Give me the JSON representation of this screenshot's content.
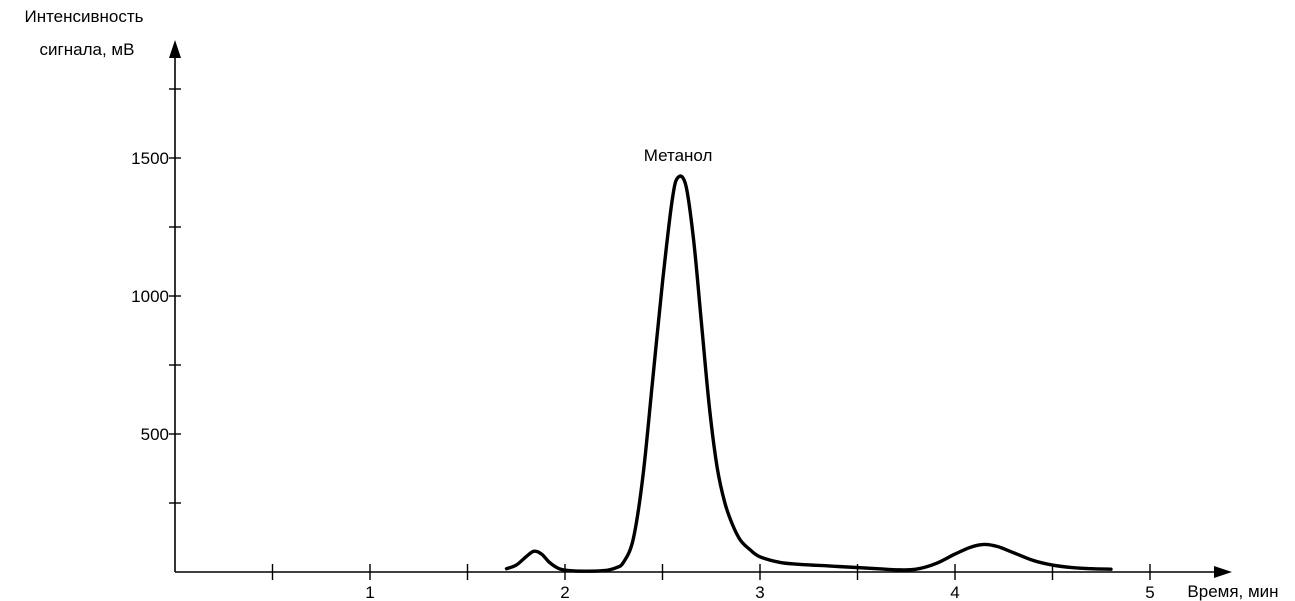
{
  "chart_data": {
    "type": "line",
    "xlabel": "Время, мин",
    "ylabel_line1": "Интенсивность",
    "ylabel_line2": "сигнала, мВ",
    "xlim": [
      0,
      5.1
    ],
    "ylim": [
      0,
      1750
    ],
    "x_ticks": [
      0.5,
      1,
      1.5,
      2,
      2.5,
      3,
      3.5,
      4,
      4.5,
      5
    ],
    "x_tick_labels": [
      {
        "value": 1,
        "label": "1"
      },
      {
        "value": 2,
        "label": "2"
      },
      {
        "value": 3,
        "label": "3"
      },
      {
        "value": 4,
        "label": "4"
      },
      {
        "value": 5,
        "label": "5"
      }
    ],
    "y_ticks": [
      250,
      500,
      750,
      1000,
      1250,
      1500,
      1750
    ],
    "y_tick_labels": [
      {
        "value": 500,
        "label": "500"
      },
      {
        "value": 1000,
        "label": "1000"
      },
      {
        "value": 1500,
        "label": "1500"
      }
    ],
    "annotations": [
      {
        "text": "Метанол",
        "x": 2.58,
        "y": 1500
      }
    ],
    "line_color": "#000000",
    "grid": false,
    "series": [
      {
        "values": [
          [
            1.7,
            12
          ],
          [
            1.75,
            25
          ],
          [
            1.8,
            55
          ],
          [
            1.84,
            75
          ],
          [
            1.88,
            65
          ],
          [
            1.92,
            35
          ],
          [
            1.97,
            12
          ],
          [
            2.02,
            5
          ],
          [
            2.1,
            3
          ],
          [
            2.2,
            5
          ],
          [
            2.26,
            15
          ],
          [
            2.3,
            35
          ],
          [
            2.35,
            120
          ],
          [
            2.4,
            350
          ],
          [
            2.45,
            700
          ],
          [
            2.5,
            1050
          ],
          [
            2.55,
            1350
          ],
          [
            2.58,
            1430
          ],
          [
            2.62,
            1400
          ],
          [
            2.66,
            1200
          ],
          [
            2.7,
            900
          ],
          [
            2.74,
            600
          ],
          [
            2.78,
            380
          ],
          [
            2.82,
            250
          ],
          [
            2.86,
            170
          ],
          [
            2.9,
            115
          ],
          [
            2.95,
            80
          ],
          [
            3.0,
            55
          ],
          [
            3.1,
            35
          ],
          [
            3.2,
            28
          ],
          [
            3.4,
            20
          ],
          [
            3.6,
            12
          ],
          [
            3.7,
            8
          ],
          [
            3.8,
            10
          ],
          [
            3.9,
            30
          ],
          [
            4.0,
            65
          ],
          [
            4.08,
            90
          ],
          [
            4.15,
            100
          ],
          [
            4.22,
            92
          ],
          [
            4.3,
            70
          ],
          [
            4.4,
            42
          ],
          [
            4.5,
            25
          ],
          [
            4.6,
            16
          ],
          [
            4.7,
            12
          ],
          [
            4.8,
            10
          ]
        ]
      }
    ]
  }
}
